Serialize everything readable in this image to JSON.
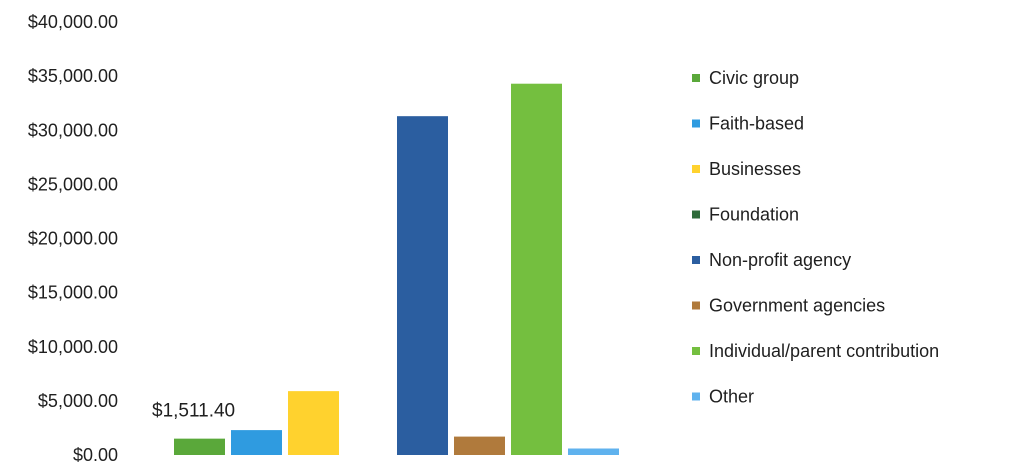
{
  "chart_data": {
    "type": "bar",
    "title": "",
    "xlabel": "",
    "ylabel": "",
    "ylim": [
      0,
      40000
    ],
    "y_ticks": [
      "$0.00",
      "$5,000.00",
      "$10,000.00",
      "$15,000.00",
      "$20,000.00",
      "$25,000.00",
      "$30,000.00",
      "$35,000.00",
      "$40,000.00"
    ],
    "grid": false,
    "legend_position": "right",
    "series": [
      {
        "name": "Civic group",
        "value": 1511.4,
        "color": "#5aa83a",
        "data_label": "$1,511.40"
      },
      {
        "name": "Faith-based",
        "value": 2300,
        "color": "#2f9be0",
        "data_label": ""
      },
      {
        "name": "Businesses",
        "value": 5900,
        "color": "#ffd22e",
        "data_label": ""
      },
      {
        "name": "Foundation",
        "value": 0,
        "color": "#2e6b3a",
        "data_label": ""
      },
      {
        "name": "Non-profit agency",
        "value": 31300,
        "color": "#2b5ea0",
        "data_label": ""
      },
      {
        "name": "Government agencies",
        "value": 1700,
        "color": "#b07a3c",
        "data_label": ""
      },
      {
        "name": "Individual/parent contribution",
        "value": 34300,
        "color": "#74bf3f",
        "data_label": ""
      },
      {
        "name": "Other",
        "value": 600,
        "color": "#5fb2ee",
        "data_label": ""
      }
    ]
  }
}
